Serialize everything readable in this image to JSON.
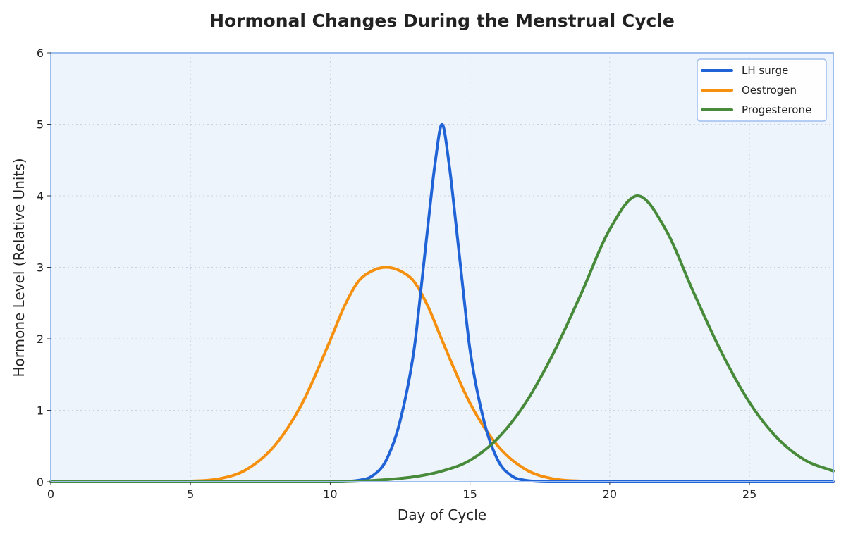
{
  "chart_data": {
    "type": "line",
    "title": "Hormonal Changes During the Menstrual Cycle",
    "xlabel": "Day of Cycle",
    "ylabel": "Hormone Level (Relative Units)",
    "xlim": [
      0,
      28
    ],
    "ylim": [
      0,
      6
    ],
    "xticks": [
      0,
      5,
      10,
      15,
      20,
      25
    ],
    "yticks": [
      0,
      1,
      2,
      3,
      4,
      5,
      6
    ],
    "grid": true,
    "legend_position": "top-right",
    "colors": {
      "plot_background": "#eef4fb",
      "plot_border": "#9dbdf0"
    },
    "series": [
      {
        "name": "LH surge",
        "color": "#1f63d6",
        "x": [
          0,
          10,
          11,
          11.5,
          12,
          12.5,
          13,
          13.25,
          13.5,
          13.75,
          14,
          14.25,
          14.5,
          14.75,
          15,
          15.5,
          16,
          16.5,
          17,
          18,
          28
        ],
        "y": [
          0,
          0,
          0.02,
          0.08,
          0.3,
          0.85,
          1.85,
          2.7,
          3.6,
          4.45,
          5.0,
          4.45,
          3.6,
          2.7,
          1.85,
          0.85,
          0.3,
          0.08,
          0.02,
          0,
          0
        ]
      },
      {
        "name": "Oestrogen",
        "color": "#f5900f",
        "x": [
          0,
          4,
          5,
          6,
          7,
          8,
          9,
          10,
          10.5,
          11,
          11.5,
          12,
          12.5,
          13,
          13.5,
          14,
          15,
          16,
          17,
          18,
          19,
          20,
          28
        ],
        "y": [
          0,
          0,
          0.01,
          0.04,
          0.17,
          0.5,
          1.1,
          1.98,
          2.45,
          2.8,
          2.95,
          3.0,
          2.95,
          2.8,
          2.45,
          1.98,
          1.1,
          0.5,
          0.17,
          0.04,
          0.01,
          0,
          0
        ]
      },
      {
        "name": "Progesterone",
        "color": "#468a3a",
        "x": [
          0,
          10,
          12,
          13,
          14,
          15,
          16,
          17,
          18,
          19,
          20,
          21,
          22,
          23,
          24,
          25,
          26,
          27,
          28
        ],
        "y": [
          0,
          0,
          0.03,
          0.07,
          0.15,
          0.3,
          0.61,
          1.11,
          1.81,
          2.65,
          3.53,
          4.0,
          3.53,
          2.65,
          1.81,
          1.11,
          0.61,
          0.3,
          0.15
        ]
      }
    ]
  }
}
